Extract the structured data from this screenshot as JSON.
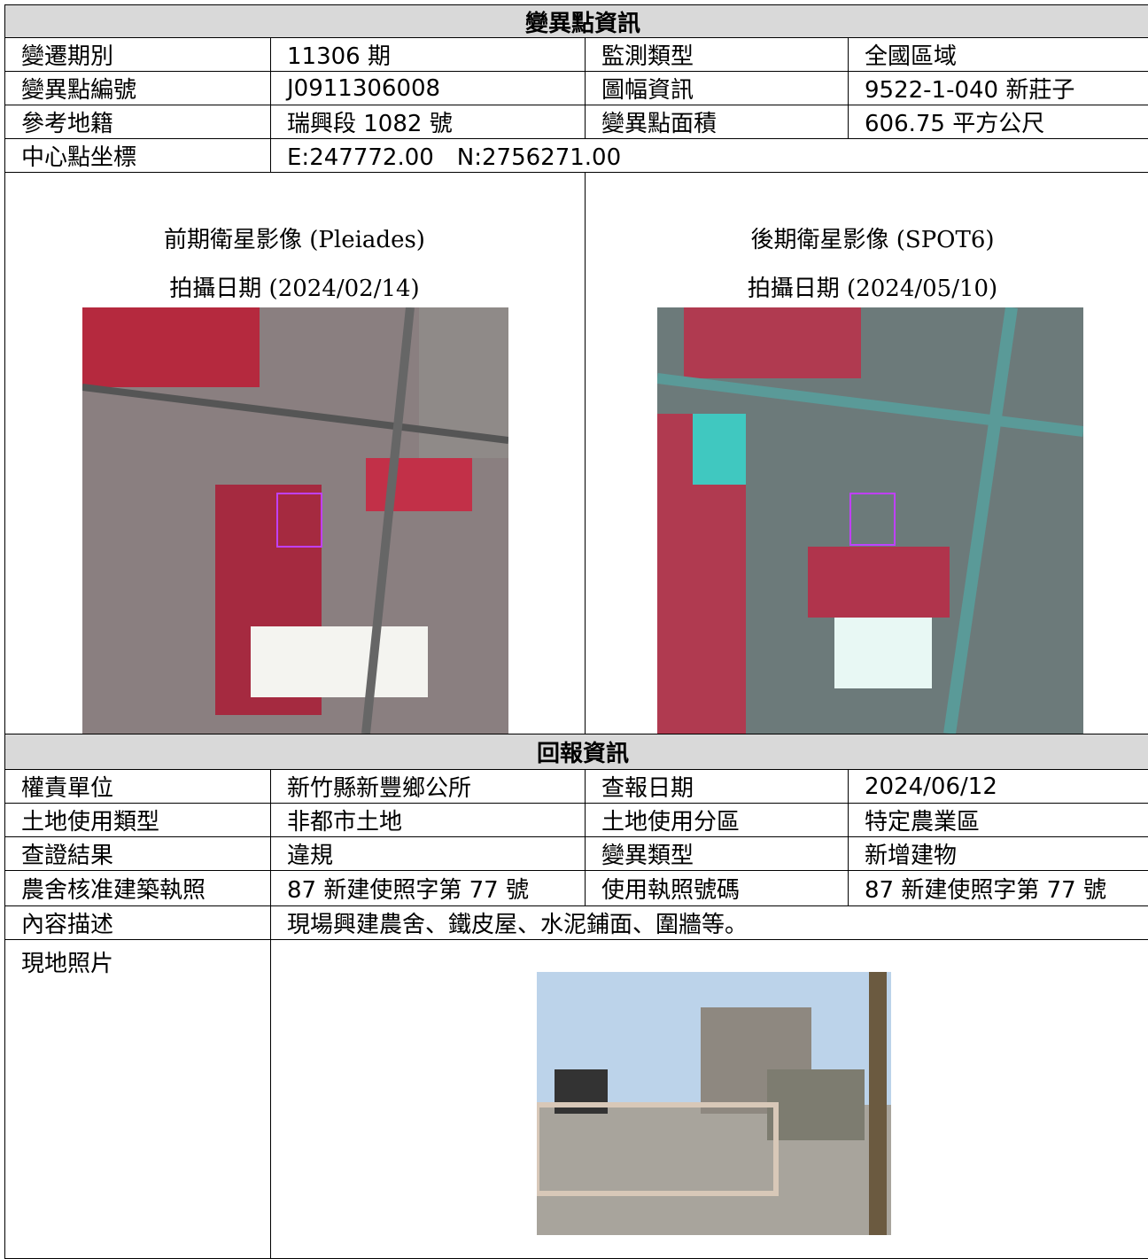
{
  "section1": {
    "title": "變異點資訊",
    "rows": [
      [
        "變遷期別",
        "11306 期",
        "監測類型",
        "全國區域"
      ],
      [
        "變異點編號",
        "J0911306008",
        "圖幅資訊",
        "9522-1-040  新莊子"
      ],
      [
        "參考地籍",
        "瑞興段 1082 號",
        "變異點面積",
        "606.75 平方公尺"
      ]
    ],
    "center": [
      "中心點坐標",
      "E:247772.00　N:2756271.00"
    ]
  },
  "images": {
    "before": {
      "title": "前期衛星影像  (Pleiades)",
      "date": "拍攝日期  (2024/02/14)"
    },
    "after": {
      "title": "後期衛星影像  (SPOT6)",
      "date": "拍攝日期  (2024/05/10)"
    }
  },
  "section2": {
    "title": "回報資訊",
    "rows": [
      [
        "權責單位",
        "新竹縣新豐鄉公所",
        "查報日期",
        "2024/06/12"
      ],
      [
        "土地使用類型",
        "非都市土地",
        "土地使用分區",
        "特定農業區"
      ],
      [
        "查證結果",
        "違規",
        "變異類型",
        "新增建物"
      ],
      [
        "農舍核准建築執照",
        "87 新建使照字第 77 號",
        "使用執照號碼",
        "87 新建使照字第 77 號"
      ]
    ],
    "description": [
      "內容描述",
      "現場興建農舍、鐵皮屋、水泥鋪面、圍牆等。"
    ],
    "photo_label": "現地照片"
  }
}
